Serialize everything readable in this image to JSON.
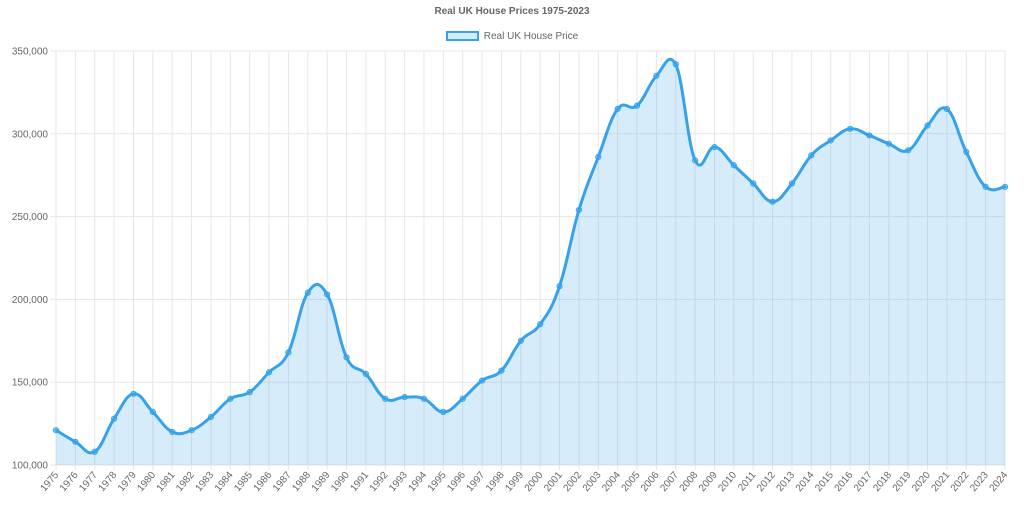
{
  "chart_data": {
    "type": "area",
    "title": "Real UK House Prices 1975-2023",
    "legend": {
      "position": "top",
      "label": "Real UK House Price"
    },
    "xlabel": "",
    "ylabel": "",
    "grid": true,
    "ylim": [
      100000,
      350000
    ],
    "yticks": [
      "100,000",
      "150,000",
      "200,000",
      "250,000",
      "300,000",
      "350,000"
    ],
    "yticks_values": [
      100000,
      150000,
      200000,
      250000,
      300000,
      350000
    ],
    "colors": {
      "line": "#36a2eb",
      "fill": "rgba(54,162,235,0.2)",
      "grid": "#e6e6e6",
      "text": "#666666"
    },
    "categories": [
      "1975",
      "1976",
      "1977",
      "1978",
      "1979",
      "1980",
      "1981",
      "1982",
      "1983",
      "1984",
      "1985",
      "1986",
      "1987",
      "1988",
      "1989",
      "1990",
      "1991",
      "1992",
      "1993",
      "1994",
      "1995",
      "1996",
      "1997",
      "1998",
      "1999",
      "2000",
      "2001",
      "2002",
      "2003",
      "2004",
      "2005",
      "2006",
      "2007",
      "2008",
      "2009",
      "2010",
      "2011",
      "2012",
      "2013",
      "2014",
      "2015",
      "2016",
      "2017",
      "2018",
      "2019",
      "2020",
      "2021",
      "2022",
      "2023",
      "2024"
    ],
    "series": [
      {
        "name": "Real UK House Price",
        "values": [
          121000,
          114000,
          108000,
          128000,
          143000,
          132000,
          120000,
          121000,
          129000,
          140000,
          144000,
          156000,
          168000,
          204000,
          203000,
          165000,
          155000,
          140000,
          141000,
          140000,
          132000,
          140000,
          151000,
          157000,
          175000,
          185000,
          208000,
          254000,
          286000,
          315000,
          317000,
          335000,
          342000,
          284000,
          292000,
          281000,
          270000,
          259000,
          270000,
          287000,
          296000,
          303000,
          299000,
          294000,
          290000,
          305000,
          315000,
          289000,
          268000,
          268000
        ]
      }
    ]
  }
}
